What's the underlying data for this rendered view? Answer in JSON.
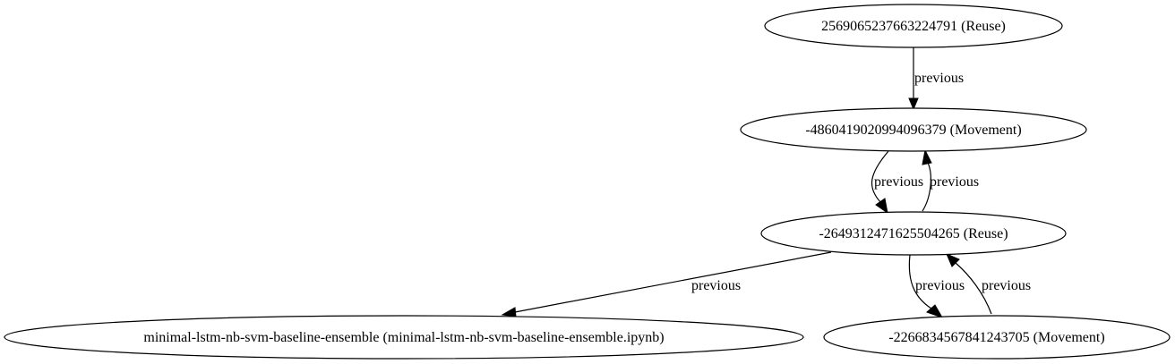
{
  "graph": {
    "nodes": [
      {
        "id": "n1",
        "label": "2569065237663224791 (Reuse)"
      },
      {
        "id": "n2",
        "label": "-4860419020994096379 (Movement)"
      },
      {
        "id": "n3",
        "label": "-2649312471625504265 (Reuse)"
      },
      {
        "id": "n4",
        "label": "minimal-lstm-nb-svm-baseline-ensemble (minimal-lstm-nb-svm-baseline-ensemble.ipynb)"
      },
      {
        "id": "n5",
        "label": "-2266834567841243705 (Movement)"
      }
    ],
    "edges": [
      {
        "id": "e1",
        "from": "n1",
        "to": "n2",
        "label": "previous"
      },
      {
        "id": "e2",
        "from": "n2",
        "to": "n3",
        "label": "previous"
      },
      {
        "id": "e3",
        "from": "n3",
        "to": "n2",
        "label": "previous"
      },
      {
        "id": "e4",
        "from": "n3",
        "to": "n4",
        "label": "previous"
      },
      {
        "id": "e5",
        "from": "n3",
        "to": "n5",
        "label": "previous"
      },
      {
        "id": "e6",
        "from": "n5",
        "to": "n3",
        "label": "previous"
      }
    ]
  }
}
